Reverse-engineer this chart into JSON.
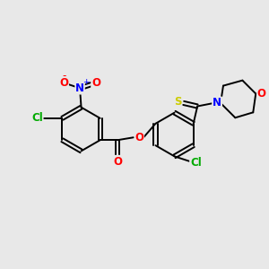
{
  "bg_color": "#e8e8e8",
  "atom_colors": {
    "C": "#000000",
    "N": "#0000ff",
    "O": "#ff0000",
    "S": "#cccc00",
    "Cl": "#00aa00",
    "H": "#000000"
  },
  "bond_color": "#000000",
  "font_size_atom": 8.5,
  "figsize": [
    3.0,
    3.0
  ],
  "dpi": 100,
  "xlim": [
    0,
    10
  ],
  "ylim": [
    0,
    10
  ]
}
